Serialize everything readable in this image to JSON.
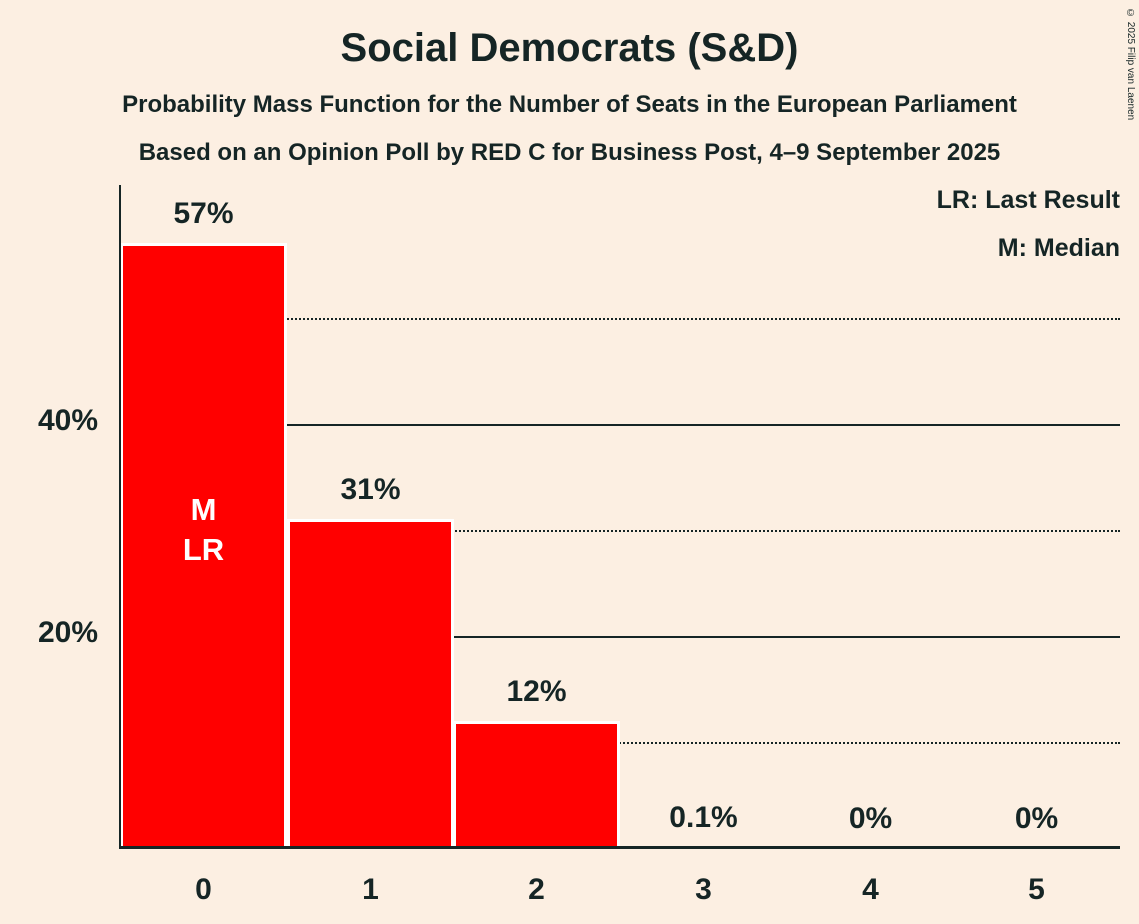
{
  "title": "Social Democrats (S&D)",
  "subtitles": [
    "Probability Mass Function for the Number of Seats in the European Parliament",
    "Based on an Opinion Poll by RED C for Business Post, 4–9 September 2025"
  ],
  "copyright": "© 2025 Filip van Laenen",
  "legend": {
    "last_result": "LR: Last Result",
    "median": "M: Median"
  },
  "colors": {
    "background": "#fcefe2",
    "bar": "#ff0000",
    "text": "#152525",
    "bar_annotation_text": "#ffffff"
  },
  "chart_data": {
    "type": "bar",
    "title": "Social Democrats (S&D)",
    "categories": [
      "0",
      "1",
      "2",
      "3",
      "4",
      "5"
    ],
    "values": [
      57,
      31,
      12,
      0.1,
      0,
      0
    ],
    "value_labels": [
      "57%",
      "31%",
      "12%",
      "0.1%",
      "0%",
      "0%"
    ],
    "ylim": [
      0,
      62.5
    ],
    "y_ticks": [
      {
        "value": 40,
        "label": "40%"
      },
      {
        "value": 20,
        "label": "20%"
      }
    ],
    "gridlines": {
      "solid": [
        20,
        40
      ],
      "dotted": [
        10,
        30,
        50
      ]
    },
    "bar_annotations": [
      {
        "category_index": 0,
        "lines": [
          "M",
          "LR"
        ]
      }
    ],
    "legend_position": "top-right",
    "grid": "horizontal-only"
  }
}
